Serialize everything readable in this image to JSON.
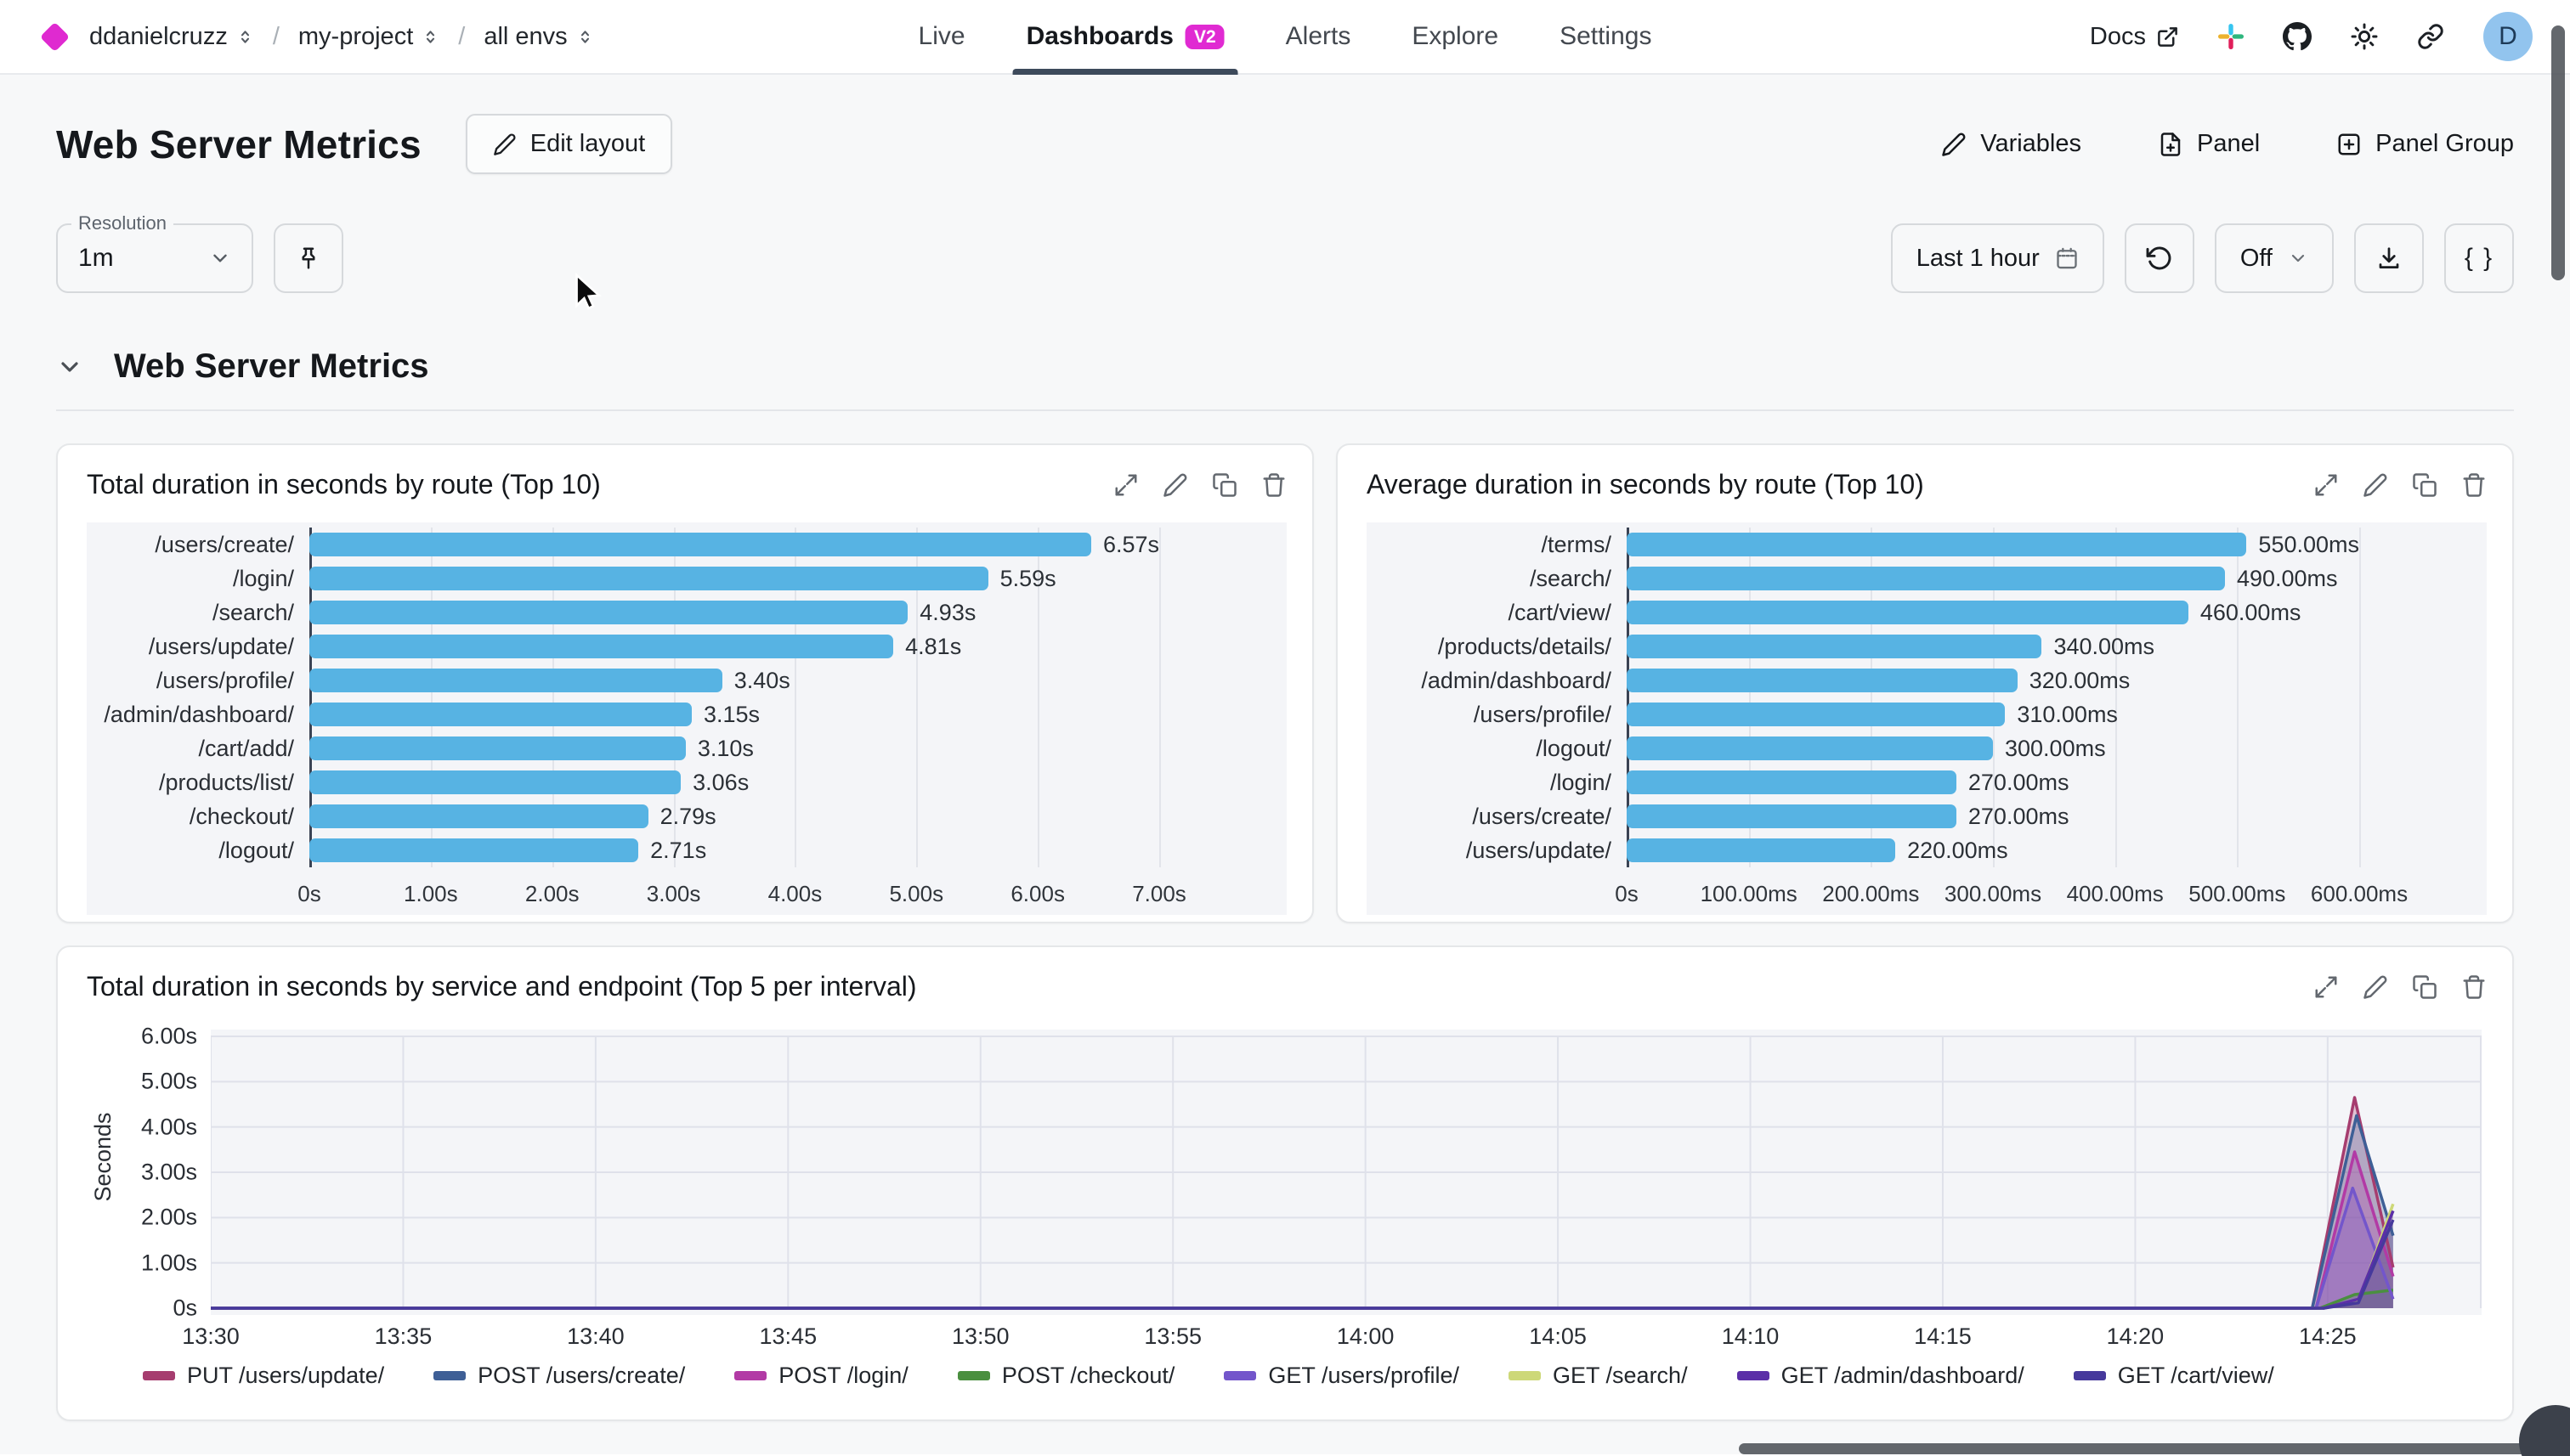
{
  "topbar": {
    "breadcrumb": [
      {
        "label": "ddanielcruzz"
      },
      {
        "label": "my-project"
      },
      {
        "label": "all envs"
      }
    ],
    "nav": [
      {
        "label": "Live"
      },
      {
        "label": "Dashboards",
        "badge": "V2",
        "active": true
      },
      {
        "label": "Alerts"
      },
      {
        "label": "Explore"
      },
      {
        "label": "Settings"
      }
    ],
    "docs_label": "Docs",
    "avatar_initial": "D"
  },
  "page": {
    "title": "Web Server Metrics",
    "edit_layout_label": "Edit layout",
    "actions": {
      "variables": "Variables",
      "panel": "Panel",
      "panel_group": "Panel Group"
    }
  },
  "controls": {
    "resolution_label": "Resolution",
    "resolution_value": "1m",
    "time_range": "Last 1 hour",
    "auto_refresh": "Off",
    "braces_label": "{ }"
  },
  "section": {
    "title": "Web Server Metrics"
  },
  "colors": {
    "accent_magenta": "#e02ad2",
    "bar_blue": "#57b3e3",
    "active_tab_underline": "#3d4a5b",
    "avatar_bg": "#92c4ee"
  },
  "chart_data": [
    {
      "type": "bar",
      "orientation": "horizontal",
      "title": "Total duration in seconds by route (Top 10)",
      "categories": [
        "/users/create/",
        "/login/",
        "/search/",
        "/users/update/",
        "/users/profile/",
        "/admin/dashboard/",
        "/cart/add/",
        "/products/list/",
        "/checkout/",
        "/logout/"
      ],
      "values": [
        6.57,
        5.59,
        4.93,
        4.81,
        3.4,
        3.15,
        3.1,
        3.06,
        2.79,
        2.71
      ],
      "value_labels": [
        "6.57s",
        "5.59s",
        "4.93s",
        "4.81s",
        "3.40s",
        "3.15s",
        "3.10s",
        "3.06s",
        "2.79s",
        "2.71s"
      ],
      "xlim": [
        0,
        7
      ],
      "x_ticks": [
        {
          "v": 0,
          "label": "0s"
        },
        {
          "v": 1,
          "label": "1.00s"
        },
        {
          "v": 2,
          "label": "2.00s"
        },
        {
          "v": 3,
          "label": "3.00s"
        },
        {
          "v": 4,
          "label": "4.00s"
        },
        {
          "v": 5,
          "label": "5.00s"
        },
        {
          "v": 6,
          "label": "6.00s"
        },
        {
          "v": 7,
          "label": "7.00s"
        }
      ],
      "bar_color": "#57b3e3",
      "label_col_width": 262
    },
    {
      "type": "bar",
      "orientation": "horizontal",
      "title": "Average duration in seconds by route (Top 10)",
      "categories": [
        "/terms/",
        "/search/",
        "/cart/view/",
        "/products/details/",
        "/admin/dashboard/",
        "/users/profile/",
        "/logout/",
        "/login/",
        "/users/create/",
        "/users/update/"
      ],
      "values": [
        550,
        490,
        460,
        340,
        320,
        310,
        300,
        270,
        270,
        220
      ],
      "value_labels": [
        "550.00ms",
        "490.00ms",
        "460.00ms",
        "340.00ms",
        "320.00ms",
        "310.00ms",
        "300.00ms",
        "270.00ms",
        "270.00ms",
        "220.00ms"
      ],
      "xlim": [
        0,
        600
      ],
      "x_ticks": [
        {
          "v": 0,
          "label": "0s"
        },
        {
          "v": 100,
          "label": "100.00ms"
        },
        {
          "v": 200,
          "label": "200.00ms"
        },
        {
          "v": 300,
          "label": "300.00ms"
        },
        {
          "v": 400,
          "label": "400.00ms"
        },
        {
          "v": 500,
          "label": "500.00ms"
        },
        {
          "v": 600,
          "label": "600.00ms"
        }
      ],
      "bar_color": "#57b3e3",
      "label_col_width": 306
    },
    {
      "type": "area-line",
      "title": "Total duration in seconds by service and endpoint (Top 5 per interval)",
      "ylabel": "Seconds",
      "ylim": [
        0,
        6
      ],
      "y_ticks": [
        {
          "v": 0,
          "label": "0s"
        },
        {
          "v": 1,
          "label": "1.00s"
        },
        {
          "v": 2,
          "label": "2.00s"
        },
        {
          "v": 3,
          "label": "3.00s"
        },
        {
          "v": 4,
          "label": "4.00s"
        },
        {
          "v": 5,
          "label": "5.00s"
        },
        {
          "v": 6,
          "label": "6.00s"
        }
      ],
      "x_domain_minutes": [
        0,
        59
      ],
      "x_ticks": [
        {
          "m": 0,
          "label": "13:30"
        },
        {
          "m": 5,
          "label": "13:35"
        },
        {
          "m": 10,
          "label": "13:40"
        },
        {
          "m": 15,
          "label": "13:45"
        },
        {
          "m": 20,
          "label": "13:50"
        },
        {
          "m": 25,
          "label": "13:55"
        },
        {
          "m": 30,
          "label": "14:00"
        },
        {
          "m": 35,
          "label": "14:05"
        },
        {
          "m": 40,
          "label": "14:10"
        },
        {
          "m": 45,
          "label": "14:15"
        },
        {
          "m": 50,
          "label": "14:20"
        },
        {
          "m": 55,
          "label": "14:25"
        }
      ],
      "grid": true,
      "legend_position": "bottom",
      "series": [
        {
          "name": "PUT /users/update/",
          "color": "#a63d6f",
          "points": [
            [
              0,
              0
            ],
            [
              54.6,
              0
            ],
            [
              55.7,
              4.65
            ],
            [
              56.7,
              0.9
            ]
          ]
        },
        {
          "name": "POST /users/create/",
          "color": "#3e5f96",
          "points": [
            [
              0,
              0
            ],
            [
              54.6,
              0
            ],
            [
              55.75,
              4.25
            ],
            [
              56.7,
              1.6
            ]
          ]
        },
        {
          "name": "POST /login/",
          "color": "#b23aa5",
          "points": [
            [
              0,
              0
            ],
            [
              54.7,
              0
            ],
            [
              55.7,
              3.45
            ],
            [
              56.7,
              0.7
            ]
          ]
        },
        {
          "name": "POST /checkout/",
          "color": "#4a8f3f",
          "points": [
            [
              0,
              0
            ],
            [
              54.8,
              0
            ],
            [
              55.7,
              0.3
            ],
            [
              56.7,
              0.4
            ]
          ]
        },
        {
          "name": "GET /users/profile/",
          "color": "#7356cb",
          "points": [
            [
              0,
              0
            ],
            [
              54.7,
              0
            ],
            [
              55.65,
              2.65
            ],
            [
              56.7,
              0.2
            ]
          ]
        },
        {
          "name": "GET /search/",
          "color": "#cdd878",
          "points": [
            [
              0,
              0
            ],
            [
              54.9,
              0
            ],
            [
              55.8,
              0.15
            ],
            [
              56.7,
              2.3
            ]
          ]
        },
        {
          "name": "GET /admin/dashboard/",
          "color": "#5b2fa8",
          "points": [
            [
              0,
              0
            ],
            [
              54.9,
              0
            ],
            [
              55.8,
              0.2
            ],
            [
              56.7,
              2.15
            ]
          ]
        },
        {
          "name": "GET /cart/view/",
          "color": "#46399c",
          "points": [
            [
              0,
              0
            ],
            [
              54.9,
              0
            ],
            [
              55.8,
              0.12
            ],
            [
              56.7,
              1.95
            ]
          ]
        }
      ]
    }
  ]
}
